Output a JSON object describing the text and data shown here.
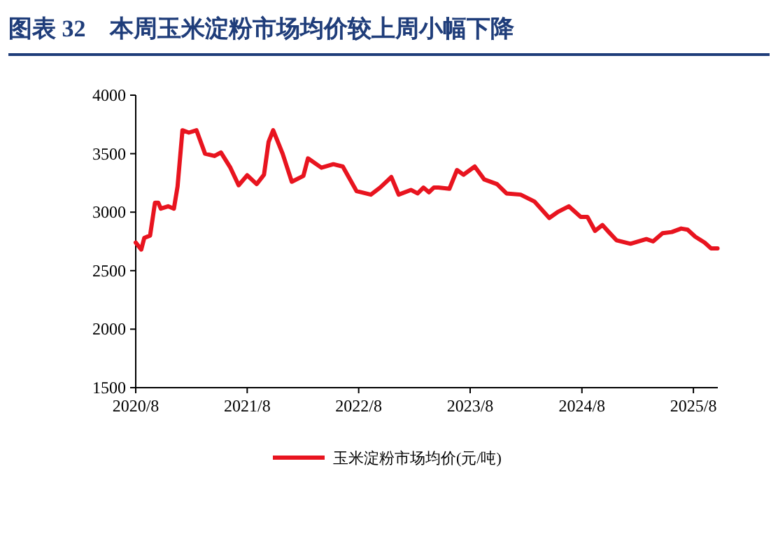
{
  "chart_data": {
    "type": "line",
    "title": "图表 32　本周玉米淀粉市场均价较上周小幅下降",
    "x": [
      "2020-08-01",
      "2020-08-19",
      "2020-08-29",
      "2020-09-17",
      "2020-10-03",
      "2020-10-14",
      "2020-10-22",
      "2020-11-15",
      "2020-12-04",
      "2020-12-16",
      "2021-01-01",
      "2021-01-22",
      "2021-02-16",
      "2021-03-16",
      "2021-04-16",
      "2021-05-07",
      "2021-06-07",
      "2021-07-04",
      "2021-08-01",
      "2021-09-01",
      "2021-09-25",
      "2021-10-10",
      "2021-10-25",
      "2021-11-25",
      "2021-12-25",
      "2022-02-01",
      "2022-02-16",
      "2022-04-01",
      "2022-05-10",
      "2022-06-10",
      "2022-07-25",
      "2022-09-10",
      "2022-10-10",
      "2022-11-16",
      "2022-12-10",
      "2023-01-19",
      "2023-02-10",
      "2023-03-01",
      "2023-03-19",
      "2023-04-04",
      "2023-04-19",
      "2023-05-25",
      "2023-06-19",
      "2023-07-10",
      "2023-08-16",
      "2023-09-16",
      "2023-10-28",
      "2023-11-28",
      "2024-01-13",
      "2024-02-28",
      "2024-04-16",
      "2024-05-13",
      "2024-06-19",
      "2024-07-28",
      "2024-08-19",
      "2024-09-13",
      "2024-10-07",
      "2024-10-28",
      "2024-11-22",
      "2025-01-07",
      "2025-02-28",
      "2025-03-22",
      "2025-04-22",
      "2025-05-22",
      "2025-06-22",
      "2025-07-13",
      "2025-08-07",
      "2025-09-07",
      "2025-09-28",
      "2025-10-19"
    ],
    "series": [
      {
        "name": "玉米淀粉市场均价(元/吨)",
        "color": "#e8141f",
        "values": [
          2740,
          2680,
          2780,
          2800,
          3080,
          3080,
          3030,
          3050,
          3030,
          3220,
          3700,
          3680,
          3700,
          3500,
          3480,
          3510,
          3380,
          3230,
          3315,
          3240,
          3320,
          3600,
          3700,
          3500,
          3260,
          3310,
          3460,
          3380,
          3410,
          3390,
          3180,
          3150,
          3210,
          3300,
          3150,
          3190,
          3160,
          3210,
          3170,
          3210,
          3210,
          3200,
          3360,
          3320,
          3390,
          3280,
          3240,
          3160,
          3150,
          3090,
          2950,
          3000,
          3050,
          2960,
          2960,
          2840,
          2890,
          2830,
          2760,
          2730,
          2770,
          2750,
          2820,
          2830,
          2860,
          2850,
          2790,
          2740,
          2690,
          2690
        ]
      }
    ],
    "xlim": [
      "2020-08-01",
      "2025-10-20"
    ],
    "xticks": [
      {
        "value": "2020-08-01",
        "label": "2020/8"
      },
      {
        "value": "2021-08-01",
        "label": "2021/8"
      },
      {
        "value": "2022-08-01",
        "label": "2022/8"
      },
      {
        "value": "2023-08-01",
        "label": "2023/8"
      },
      {
        "value": "2024-08-01",
        "label": "2024/8"
      },
      {
        "value": "2025-08-01",
        "label": "2025/8"
      }
    ],
    "ylim": [
      1500,
      4000
    ],
    "yticks": [
      1500,
      2000,
      2500,
      3000,
      3500,
      4000
    ],
    "legend": "bottom",
    "grid": false,
    "line_style": "solid",
    "marker": "none"
  }
}
